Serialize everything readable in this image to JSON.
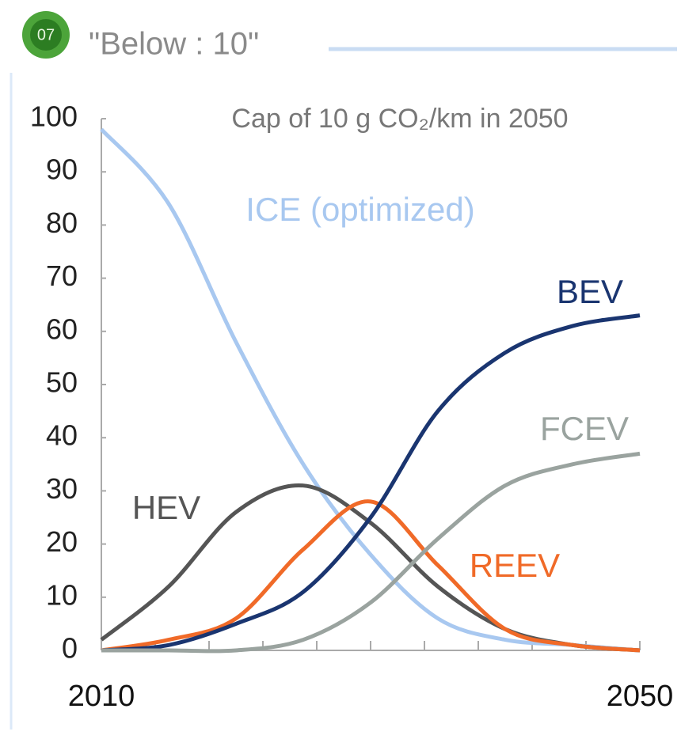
{
  "badge": "07",
  "chart_data": {
    "type": "line",
    "title": "\"Below : 10\"",
    "subtitle": "Cap of 10 g CO₂/km in 2050",
    "x": [
      2010,
      2015,
      2020,
      2025,
      2030,
      2035,
      2040,
      2045,
      2050
    ],
    "series": [
      {
        "name": "ICE (optimized)",
        "color": "#a8c8f0",
        "values": [
          98,
          84,
          58,
          35,
          18,
          6,
          2,
          1,
          0
        ]
      },
      {
        "name": "HEV",
        "color": "#555555",
        "values": [
          2,
          12,
          26,
          31,
          24,
          12,
          4,
          1,
          0
        ]
      },
      {
        "name": "REEV",
        "color": "#f06a28",
        "values": [
          0,
          2,
          6,
          19,
          28,
          16,
          4,
          1,
          0
        ]
      },
      {
        "name": "BEV",
        "color": "#1a3570",
        "values": [
          0,
          1,
          5,
          11,
          25,
          45,
          56,
          61,
          63
        ]
      },
      {
        "name": "FCEV",
        "color": "#9aa39f",
        "values": [
          0,
          0,
          0,
          2,
          9,
          21,
          31,
          35,
          37
        ]
      }
    ],
    "xlim": [
      2010,
      2050
    ],
    "xticks": [
      2010,
      2050
    ],
    "xminorticks": [
      2014,
      2018,
      2022,
      2026,
      2030,
      2034,
      2038,
      2042,
      2046
    ],
    "ylim": [
      0,
      100
    ],
    "yticks": [
      0,
      10,
      20,
      30,
      40,
      50,
      60,
      70,
      80,
      90,
      100
    ]
  }
}
